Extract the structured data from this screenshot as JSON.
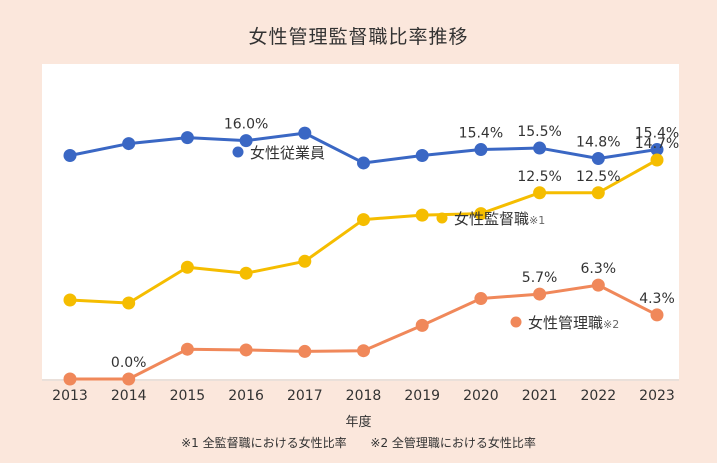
{
  "title": "女性管理監督職比率推移",
  "footnotes": [
    "※1 全監督職における女性比率",
    "※2 全管理職における女性比率"
  ],
  "colors": {
    "background": "#fbe7dc",
    "plot_background": "#ffffff",
    "employees": "#3a67c4",
    "supervisors": "#f5bd00",
    "managers": "#f0885a"
  },
  "chart_data": {
    "type": "line",
    "x": [
      2013,
      2014,
      2015,
      2016,
      2017,
      2018,
      2019,
      2020,
      2021,
      2022,
      2023
    ],
    "xlabel": "年度",
    "ylabel": "",
    "ylim": [
      0,
      18.5
    ],
    "grid": false,
    "series": [
      {
        "name": "女性従業員",
        "note": "",
        "color": "#3a67c4",
        "values": [
          15.0,
          15.8,
          16.2,
          16.0,
          16.5,
          14.5,
          15.0,
          15.4,
          15.5,
          14.8,
          15.4
        ],
        "data_labels": [
          "",
          "",
          "",
          "16.0%",
          "",
          "",
          "",
          "15.4%",
          "15.5%",
          "14.8%",
          "15.4%"
        ]
      },
      {
        "name": "女性監督職",
        "note": "※1",
        "color": "#f5bd00",
        "values": [
          5.3,
          5.1,
          7.5,
          7.1,
          7.9,
          10.7,
          11.0,
          11.1,
          12.5,
          12.5,
          14.7
        ],
        "data_labels": [
          "",
          "",
          "",
          "",
          "",
          "",
          "",
          "",
          "12.5%",
          "12.5%",
          "14.7%"
        ]
      },
      {
        "name": "女性管理職",
        "note": "※2",
        "color": "#f0885a",
        "values": [
          0.0,
          0.0,
          2.0,
          1.95,
          1.85,
          1.9,
          3.6,
          5.4,
          5.7,
          6.3,
          4.3
        ],
        "data_labels": [
          "",
          "0.0%",
          "",
          "",
          "",
          "",
          "",
          "",
          "5.7%",
          "6.3%",
          "4.3%"
        ]
      }
    ]
  }
}
